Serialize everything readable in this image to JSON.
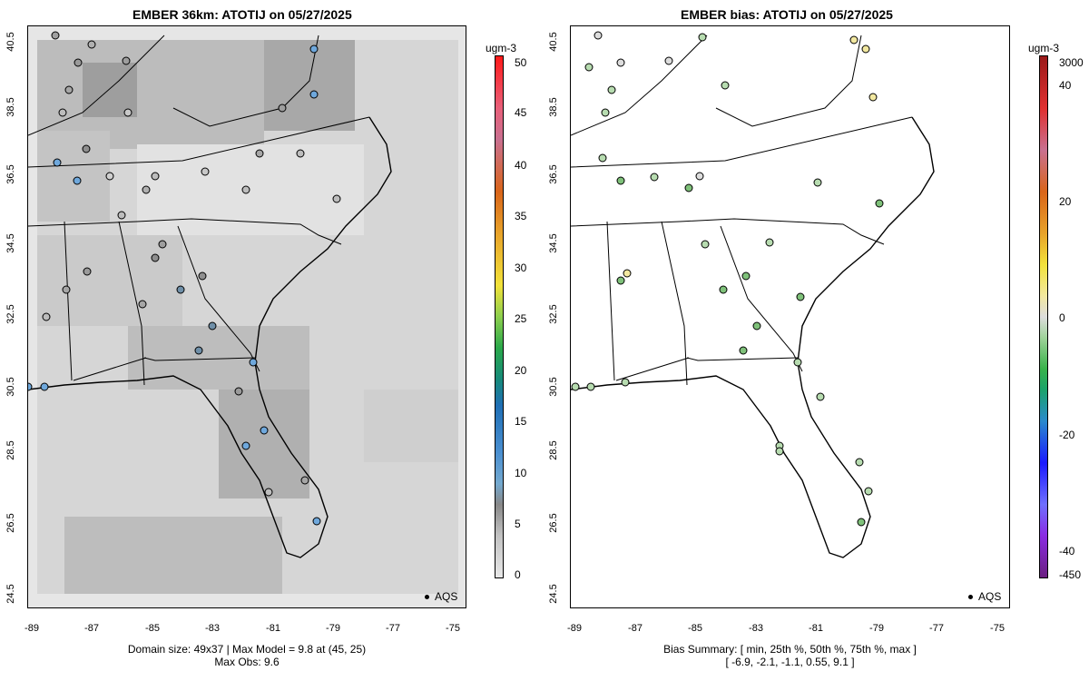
{
  "left_panel": {
    "title": "EMBER 36km: ATOTIJ on 05/27/2025",
    "footer_line1": "Domain size: 49x37 | Max Model = 9.8 at (45, 25)",
    "footer_line2": "Max Obs: 9.6",
    "legend": "AQS",
    "colorbar": {
      "unit": "ugm-3",
      "labels": [
        "50",
        "45",
        "40",
        "35",
        "30",
        "25",
        "20",
        "15",
        "10",
        "5",
        "0"
      ]
    }
  },
  "right_panel": {
    "title": "EMBER bias: ATOTIJ on 05/27/2025",
    "footer_line1": "Bias Summary: [ min, 25th %, 50th %, 75th %, max ]",
    "footer_line2": "[ -6.9,   -2.1,   -1.1,   0.55,   9.1 ]",
    "legend": "AQS",
    "colorbar": {
      "unit": "ugm-3",
      "labels": [
        "3000",
        "40",
        "20",
        "0",
        "-20",
        "-40",
        "-450"
      ]
    }
  },
  "axes": {
    "y_labels": [
      "40.5",
      "38.5",
      "36.5",
      "34.5",
      "32.5",
      "30.5",
      "28.5",
      "26.5",
      "24.5"
    ],
    "x_labels": [
      "-89",
      "-87",
      "-85",
      "-83",
      "-81",
      "-79",
      "-77",
      "-75"
    ]
  },
  "colors": {
    "model_light": "#e6e6e6",
    "model_mid": "#d3d3d3",
    "model_dark": "#bdbdbd",
    "obs_high": "#6fa8dc",
    "bias_neg": "#b7dcb0",
    "bias_pos": "#f2e8a0"
  }
}
